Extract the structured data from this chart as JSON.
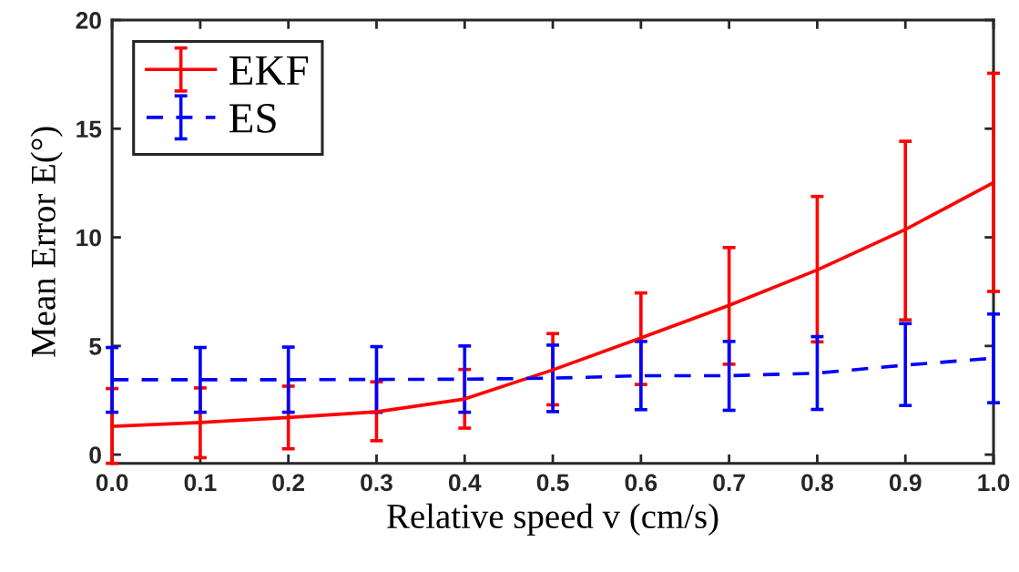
{
  "chart_data": {
    "type": "line",
    "xlabel": "Relative speed v (cm/s)",
    "ylabel": "Mean Error E(°)",
    "x": [
      0.0,
      0.1,
      0.2,
      0.3,
      0.4,
      0.5,
      0.6,
      0.7,
      0.8,
      0.9,
      1.0
    ],
    "series": [
      {
        "name": "EKF",
        "color": "#ff0000",
        "line_style": "solid",
        "values": [
          1.3,
          1.48,
          1.71,
          1.97,
          2.56,
          3.9,
          5.37,
          6.87,
          8.5,
          10.36,
          12.52
        ],
        "errors": [
          [
            -0.4,
            3.04
          ],
          [
            -0.14,
            3.07
          ],
          [
            0.27,
            3.15
          ],
          [
            0.64,
            3.35
          ],
          [
            1.22,
            3.92
          ],
          [
            2.29,
            5.57
          ],
          [
            3.23,
            7.44
          ],
          [
            4.16,
            9.53
          ],
          [
            5.19,
            11.88
          ],
          [
            6.2,
            14.42
          ],
          [
            7.51,
            17.55
          ]
        ]
      },
      {
        "name": "ES",
        "color": "#0000ff",
        "line_style": "dashed",
        "values": [
          3.45,
          3.45,
          3.45,
          3.46,
          3.47,
          3.52,
          3.63,
          3.63,
          3.75,
          4.12,
          4.44
        ],
        "errors": [
          [
            1.95,
            4.93
          ],
          [
            1.95,
            4.93
          ],
          [
            1.95,
            4.95
          ],
          [
            1.95,
            4.97
          ],
          [
            1.95,
            5.0
          ],
          [
            1.98,
            5.04
          ],
          [
            2.07,
            5.21
          ],
          [
            2.04,
            5.21
          ],
          [
            2.08,
            5.43
          ],
          [
            2.26,
            6.03
          ],
          [
            2.39,
            6.47
          ]
        ]
      }
    ],
    "xlim": [
      0.0,
      1.0
    ],
    "xticks": [
      {
        "value": 0.0,
        "label": "0.0"
      },
      {
        "value": 0.1,
        "label": "0.1"
      },
      {
        "value": 0.2,
        "label": "0.2"
      },
      {
        "value": 0.3,
        "label": "0.3"
      },
      {
        "value": 0.4,
        "label": "0.4"
      },
      {
        "value": 0.5,
        "label": "0.5"
      },
      {
        "value": 0.6,
        "label": "0.6"
      },
      {
        "value": 0.7,
        "label": "0.7"
      },
      {
        "value": 0.8,
        "label": "0.8"
      },
      {
        "value": 0.9,
        "label": "0.9"
      },
      {
        "value": 1.0,
        "label": "1.0"
      }
    ],
    "ylim": [
      -0.4,
      20
    ],
    "yticks": [
      0,
      5,
      10,
      15,
      20
    ],
    "legend": "top left",
    "grid": false,
    "marker": "none"
  }
}
